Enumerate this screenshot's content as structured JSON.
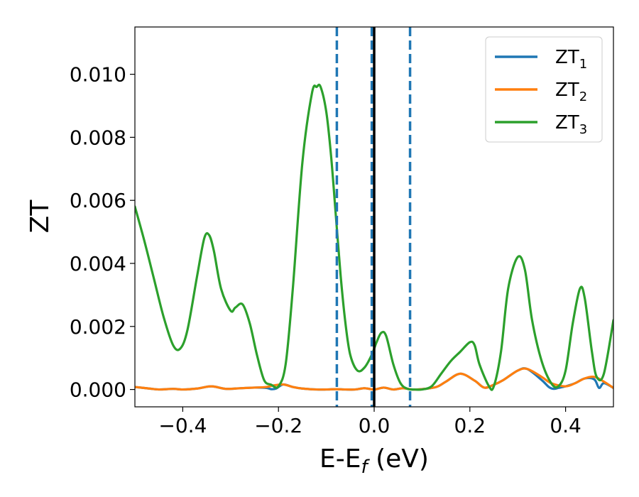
{
  "chart_data": {
    "type": "line",
    "title": "",
    "xlabel": {
      "main": "E-E",
      "sub": "f",
      "suffix": " (eV)"
    },
    "ylabel": "ZT",
    "xlim": [
      -0.5,
      0.5
    ],
    "ylim": [
      -0.00055,
      0.0115
    ],
    "xticks": [
      -0.4,
      -0.2,
      0.0,
      0.2,
      0.4
    ],
    "xtick_labels": [
      "−0.4",
      "−0.2",
      "0.0",
      "0.2",
      "0.4"
    ],
    "yticks": [
      0.0,
      0.002,
      0.004,
      0.006,
      0.008,
      0.01
    ],
    "ytick_labels": [
      "0.000",
      "0.002",
      "0.004",
      "0.006",
      "0.008",
      "0.010"
    ],
    "grid": false,
    "legend": "top-right",
    "vlines": [
      {
        "x": -0.078,
        "style": "dashed",
        "color": "#1f77b4"
      },
      {
        "x": -0.005,
        "style": "dashed",
        "color": "#1f77b4"
      },
      {
        "x": 0.0,
        "style": "solid",
        "color": "#000000"
      },
      {
        "x": 0.075,
        "style": "dashed",
        "color": "#1f77b4"
      }
    ],
    "series": [
      {
        "name": "ZT",
        "name_sub": "1",
        "color": "#1f77b4",
        "x": [
          -0.5,
          -0.47,
          -0.45,
          -0.42,
          -0.4,
          -0.37,
          -0.34,
          -0.31,
          -0.28,
          -0.25,
          -0.225,
          -0.215,
          -0.205,
          -0.19,
          -0.17,
          -0.15,
          -0.12,
          -0.1,
          -0.08,
          -0.06,
          -0.04,
          -0.02,
          0.0,
          0.02,
          0.04,
          0.06,
          0.08,
          0.1,
          0.13,
          0.15,
          0.18,
          0.21,
          0.23,
          0.25,
          0.27,
          0.3,
          0.32,
          0.35,
          0.365,
          0.375,
          0.385,
          0.4,
          0.42,
          0.44,
          0.46,
          0.47,
          0.48,
          0.5
        ],
        "y": [
          8e-05,
          3e-05,
          0.0,
          2e-05,
          0.0,
          3e-05,
          0.0001,
          2e-05,
          4e-05,
          6e-05,
          5e-05,
          1e-05,
          3e-05,
          0.00016,
          8e-05,
          3e-05,
          0.0,
          0.0,
          1e-05,
          0.0,
          0.0,
          4e-05,
          0.0,
          6e-05,
          0.0,
          4e-05,
          0.0,
          1e-05,
          8e-05,
          0.00025,
          0.0005,
          0.00028,
          6e-05,
          0.00015,
          0.0003,
          0.0006,
          0.00065,
          0.0003,
          8e-05,
          2e-05,
          5e-05,
          0.0001,
          0.0002,
          0.00035,
          0.00032,
          5e-05,
          0.0002,
          5e-05
        ]
      },
      {
        "name": "ZT",
        "name_sub": "2",
        "color": "#ff7f0e",
        "x": [
          -0.5,
          -0.47,
          -0.45,
          -0.42,
          -0.4,
          -0.37,
          -0.34,
          -0.31,
          -0.28,
          -0.25,
          -0.225,
          -0.21,
          -0.19,
          -0.17,
          -0.15,
          -0.12,
          -0.1,
          -0.08,
          -0.06,
          -0.04,
          -0.02,
          0.0,
          0.02,
          0.04,
          0.06,
          0.08,
          0.1,
          0.13,
          0.15,
          0.18,
          0.21,
          0.23,
          0.25,
          0.27,
          0.3,
          0.32,
          0.35,
          0.37,
          0.4,
          0.42,
          0.44,
          0.46,
          0.48,
          0.5
        ],
        "y": [
          8e-05,
          3e-05,
          0.0,
          2e-05,
          0.0,
          3e-05,
          0.0001,
          2e-05,
          4e-05,
          6e-05,
          8e-05,
          0.00013,
          0.00016,
          8e-05,
          3e-05,
          0.0,
          0.0,
          1e-05,
          0.0,
          0.0,
          4e-05,
          0.0,
          6e-05,
          0.0,
          4e-05,
          0.0,
          1e-05,
          8e-05,
          0.00025,
          0.0005,
          0.00028,
          6e-05,
          0.00015,
          0.0003,
          0.0006,
          0.00065,
          0.0004,
          0.0002,
          0.0001,
          0.0002,
          0.00035,
          0.0004,
          0.00025,
          5e-05
        ]
      },
      {
        "name": "ZT",
        "name_sub": "3",
        "color": "#2ca02c",
        "x": [
          -0.5,
          -0.48,
          -0.46,
          -0.44,
          -0.42,
          -0.405,
          -0.39,
          -0.37,
          -0.355,
          -0.345,
          -0.335,
          -0.32,
          -0.3,
          -0.29,
          -0.275,
          -0.26,
          -0.245,
          -0.23,
          -0.215,
          -0.2,
          -0.185,
          -0.17,
          -0.15,
          -0.13,
          -0.12,
          -0.112,
          -0.1,
          -0.09,
          -0.08,
          -0.07,
          -0.06,
          -0.05,
          -0.035,
          -0.02,
          -0.005,
          0.005,
          0.015,
          0.025,
          0.04,
          0.055,
          0.07,
          0.085,
          0.1,
          0.12,
          0.14,
          0.16,
          0.18,
          0.2,
          0.21,
          0.22,
          0.24,
          0.25,
          0.265,
          0.28,
          0.3,
          0.315,
          0.33,
          0.35,
          0.37,
          0.385,
          0.4,
          0.415,
          0.43,
          0.44,
          0.455,
          0.465,
          0.48,
          0.5
        ],
        "y": [
          0.0058,
          0.0047,
          0.0035,
          0.0023,
          0.0014,
          0.0013,
          0.0019,
          0.0036,
          0.0048,
          0.0049,
          0.0044,
          0.0032,
          0.0025,
          0.0026,
          0.0027,
          0.0021,
          0.0011,
          0.0003,
          0.00015,
          0.0001,
          0.0008,
          0.0032,
          0.0072,
          0.0094,
          0.0096,
          0.0096,
          0.0088,
          0.0074,
          0.0055,
          0.0036,
          0.0021,
          0.0011,
          0.0006,
          0.0007,
          0.0011,
          0.0015,
          0.0018,
          0.0017,
          0.0008,
          0.0002,
          2e-05,
          0.0,
          0.0,
          0.0001,
          0.0005,
          0.0009,
          0.0012,
          0.0015,
          0.0014,
          0.0008,
          0.0001,
          0.0001,
          0.0012,
          0.0032,
          0.0042,
          0.0038,
          0.0022,
          0.0009,
          0.0002,
          0.0001,
          0.0006,
          0.0021,
          0.0032,
          0.0029,
          0.0012,
          0.0004,
          0.0005,
          0.0022
        ]
      }
    ]
  }
}
